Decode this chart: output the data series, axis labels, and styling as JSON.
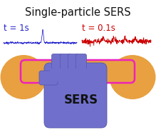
{
  "title": "Single-particle SERS",
  "title_fontsize": 10.5,
  "title_color": "#111111",
  "bg_color": "#ffffff",
  "label_blue": "t = 1s",
  "label_red": "t = 0.1s",
  "label_fontsize": 8.5,
  "sers_label": "SERS",
  "sers_fontsize": 12,
  "blue_color": "#2222cc",
  "red_color": "#cc0000",
  "hand_color": "#7070cc",
  "hand_outline": "#5555aa",
  "nanorod_color": "#e8a040",
  "nanorod_outline": "#ee22bb",
  "sphere_color": "#e8a040",
  "sphere_outline": "#cc7700",
  "finger_color": "#7070cc",
  "wrist_color": "#7070cc"
}
